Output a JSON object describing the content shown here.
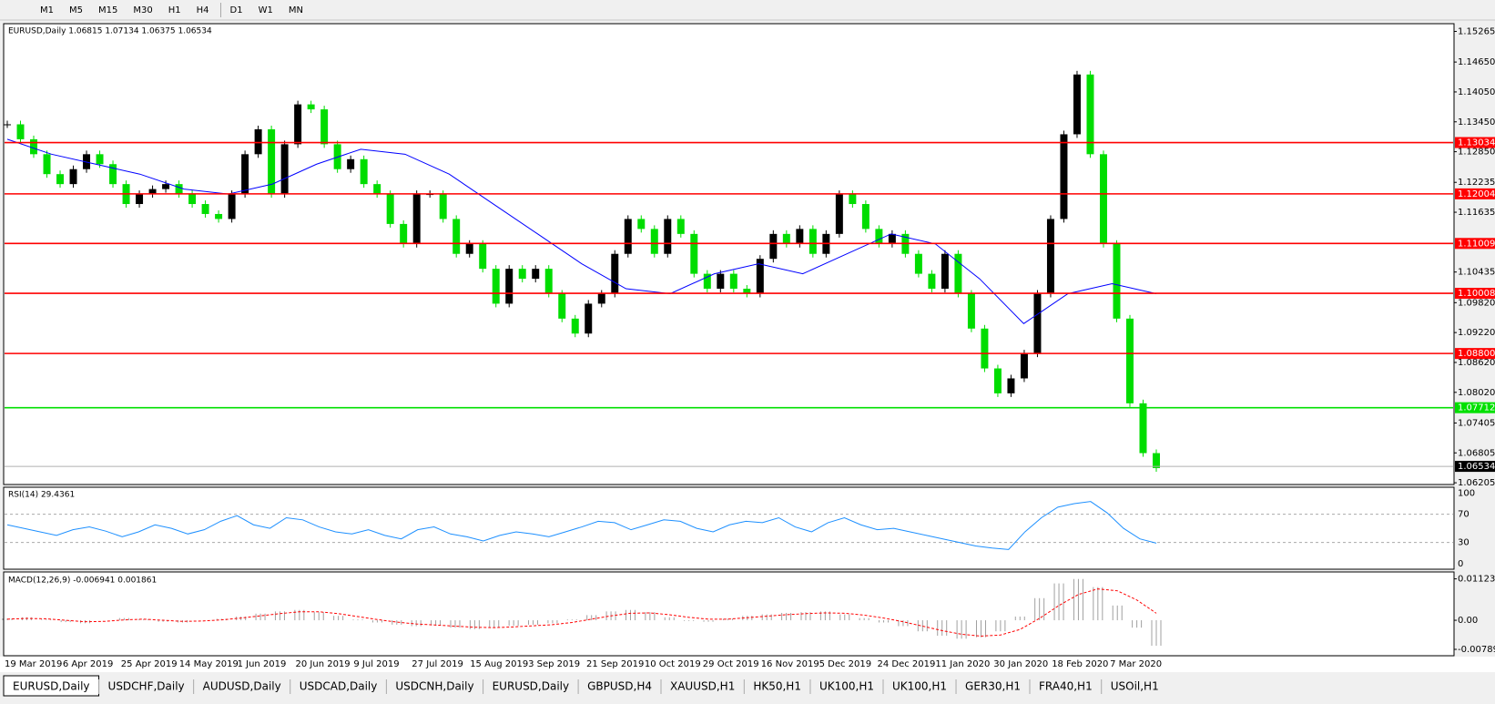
{
  "toolbar": {
    "timeframes": [
      "M1",
      "M5",
      "M15",
      "M30",
      "H1",
      "H4",
      "D1",
      "W1",
      "MN"
    ]
  },
  "chart": {
    "header": "EURUSD,Daily  1.06815 1.07134 1.06375 1.06534",
    "ylim": [
      1.0617,
      1.1542
    ],
    "price_ticks": [
      {
        "value": 1.15265,
        "label": "1.15265"
      },
      {
        "value": 1.1465,
        "label": "1.14650"
      },
      {
        "value": 1.1405,
        "label": "1.14050"
      },
      {
        "value": 1.1345,
        "label": "1.13450"
      },
      {
        "value": 1.1285,
        "label": "1.12850"
      },
      {
        "value": 1.12235,
        "label": "1.12235"
      },
      {
        "value": 1.11635,
        "label": "1.11635"
      },
      {
        "value": 1.10435,
        "label": "1.10435"
      },
      {
        "value": 1.0982,
        "label": "1.09820"
      },
      {
        "value": 1.0922,
        "label": "1.09220"
      },
      {
        "value": 1.0862,
        "label": "1.08620"
      },
      {
        "value": 1.0802,
        "label": "1.08020"
      },
      {
        "value": 1.07405,
        "label": "1.07405"
      },
      {
        "value": 1.06805,
        "label": "1.06805"
      },
      {
        "value": 1.06205,
        "label": "1.06205"
      }
    ],
    "levels": [
      {
        "value": 1.13034,
        "label": "1.13034",
        "color": "#ff0000"
      },
      {
        "value": 1.12004,
        "label": "1.12004",
        "color": "#ff0000"
      },
      {
        "value": 1.11009,
        "label": "1.11009",
        "color": "#ff0000"
      },
      {
        "value": 1.10008,
        "label": "1.10008",
        "color": "#ff0000"
      },
      {
        "value": 1.088,
        "label": "1.08800",
        "color": "#ff0000"
      },
      {
        "value": 1.07712,
        "label": "1.07712",
        "color": "#00e000"
      },
      {
        "value": 1.06534,
        "label": "1.06534",
        "color": "#000000"
      }
    ],
    "up_color": "#000000",
    "down_color": "#00dd00",
    "ma_color": "#0000ff",
    "closes": [
      1.134,
      1.131,
      1.128,
      1.124,
      1.122,
      1.125,
      1.128,
      1.126,
      1.122,
      1.118,
      1.12,
      1.121,
      1.122,
      1.12,
      1.118,
      1.116,
      1.115,
      1.12,
      1.128,
      1.133,
      1.12,
      1.13,
      1.138,
      1.137,
      1.13,
      1.125,
      1.127,
      1.122,
      1.12,
      1.114,
      1.11,
      1.12,
      1.12,
      1.115,
      1.108,
      1.11,
      1.105,
      1.098,
      1.105,
      1.103,
      1.105,
      1.1,
      1.095,
      1.092,
      1.098,
      1.1,
      1.108,
      1.115,
      1.113,
      1.108,
      1.115,
      1.112,
      1.104,
      1.101,
      1.104,
      1.101,
      1.1,
      1.107,
      1.112,
      1.11,
      1.113,
      1.108,
      1.112,
      1.12,
      1.118,
      1.113,
      1.11,
      1.112,
      1.108,
      1.104,
      1.101,
      1.108,
      1.1,
      1.093,
      1.085,
      1.08,
      1.083,
      1.088,
      1.1,
      1.115,
      1.132,
      1.144,
      1.128,
      1.11,
      1.095,
      1.078,
      1.068,
      1.065
    ],
    "ma": [
      1.131,
      1.128,
      1.126,
      1.124,
      1.121,
      1.12,
      1.122,
      1.126,
      1.129,
      1.128,
      1.124,
      1.118,
      1.112,
      1.106,
      1.101,
      1.1,
      1.104,
      1.106,
      1.104,
      1.108,
      1.112,
      1.11,
      1.103,
      1.094,
      1.1,
      1.102,
      1.1
    ],
    "date_labels": [
      "19 Mar 2019",
      "6 Apr 2019",
      "25 Apr 2019",
      "14 May 2019",
      "1 Jun 2019",
      "20 Jun 2019",
      "9 Jul 2019",
      "27 Jul 2019",
      "15 Aug 2019",
      "3 Sep 2019",
      "21 Sep 2019",
      "10 Oct 2019",
      "29 Oct 2019",
      "16 Nov 2019",
      "5 Dec 2019",
      "24 Dec 2019",
      "11 Jan 2020",
      "30 Jan 2020",
      "18 Feb 2020",
      "7 Mar 2020"
    ]
  },
  "rsi": {
    "header": "RSI(14) 29.4361",
    "ticks": [
      100,
      70,
      30,
      0
    ],
    "color": "#1e90ff",
    "values": [
      55,
      50,
      45,
      40,
      48,
      52,
      46,
      38,
      45,
      55,
      50,
      42,
      48,
      60,
      68,
      55,
      50,
      65,
      62,
      52,
      45,
      42,
      48,
      40,
      35,
      48,
      52,
      42,
      38,
      32,
      40,
      45,
      42,
      38,
      45,
      52,
      60,
      58,
      48,
      55,
      62,
      60,
      50,
      45,
      55,
      60,
      58,
      65,
      52,
      45,
      58,
      65,
      55,
      48,
      50,
      45,
      40,
      35,
      30,
      25,
      22,
      20,
      45,
      65,
      80,
      85,
      88,
      72,
      50,
      35,
      29
    ]
  },
  "macd": {
    "header": "MACD(12,26,9) -0.006941 0.001861",
    "ticks": [
      {
        "value": 0.011232,
        "label": "0.011232"
      },
      {
        "value": 0,
        "label": "0.00"
      },
      {
        "value": -0.007894,
        "label": "-0.007894"
      }
    ],
    "hist_color": "#a0a0a0",
    "signal_color": "#ff0000",
    "histogram": [
      0.0005,
      0.0008,
      0.0002,
      -0.0005,
      -0.0008,
      0.0,
      0.0006,
      0.0003,
      -0.0004,
      -0.0006,
      0.0,
      0.0004,
      0.001,
      0.0018,
      0.0024,
      0.0028,
      0.0022,
      0.0012,
      0.0002,
      -0.0006,
      -0.0012,
      -0.0016,
      -0.0014,
      -0.002,
      -0.0024,
      -0.002,
      -0.0015,
      -0.0012,
      -0.0008,
      0.0002,
      0.0014,
      0.0024,
      0.0028,
      0.0022,
      0.0008,
      -0.0002,
      -0.0004,
      0.0004,
      0.0012,
      0.0016,
      0.002,
      0.0022,
      0.0024,
      0.0016,
      0.0006,
      -0.0006,
      -0.0016,
      -0.003,
      -0.0042,
      -0.005,
      -0.0046,
      -0.003,
      0.001,
      0.006,
      0.01,
      0.0112,
      0.009,
      0.004,
      -0.002,
      -0.0069
    ],
    "signal": [
      0.0003,
      0.0005,
      0.0004,
      0.0,
      -0.0004,
      -0.0003,
      0.0001,
      0.0003,
      0.0,
      -0.0003,
      -0.0002,
      0.0001,
      0.0006,
      0.0012,
      0.0018,
      0.0023,
      0.0023,
      0.0018,
      0.001,
      0.0002,
      -0.0005,
      -0.001,
      -0.0013,
      -0.0016,
      -0.0019,
      -0.002,
      -0.0018,
      -0.0015,
      -0.0012,
      -0.0006,
      0.0003,
      0.0012,
      0.0019,
      0.002,
      0.0015,
      0.0008,
      0.0003,
      0.0003,
      0.0007,
      0.0011,
      0.0015,
      0.0018,
      0.002,
      0.0019,
      0.0014,
      0.0006,
      -0.0004,
      -0.0016,
      -0.0028,
      -0.0038,
      -0.0043,
      -0.004,
      -0.0025,
      0.0005,
      0.004,
      0.007,
      0.0085,
      0.008,
      0.0055,
      0.0019
    ]
  },
  "tabs": [
    "EURUSD,Daily",
    "USDCHF,Daily",
    "AUDUSD,Daily",
    "USDCAD,Daily",
    "USDCNH,Daily",
    "EURUSD,Daily",
    "GBPUSD,H4",
    "XAUUSD,H1",
    "HK50,H1",
    "UK100,H1",
    "UK100,H1",
    "GER30,H1",
    "FRA40,H1",
    "USOil,H1"
  ]
}
